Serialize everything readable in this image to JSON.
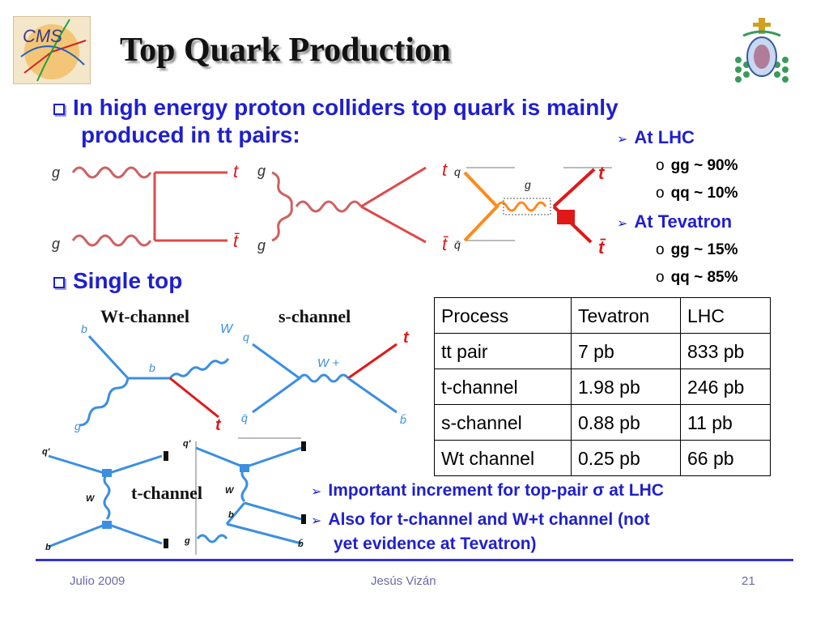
{
  "slide": {
    "title": "Top Quark Production",
    "bullet1": "In high energy proton colliders top quark is mainly produced in tt pairs:",
    "bullet1_line1": "In high energy proton colliders top quark is mainly",
    "bullet1_line2": "produced in tt pairs:",
    "bullet2": "Single top",
    "lhc": {
      "label": "At LHC",
      "items": [
        {
          "marker": "o",
          "text": "gg ~ 90%"
        },
        {
          "marker": "o",
          "text": "qq ~ 10%"
        }
      ]
    },
    "tevatron": {
      "label": "At Tevatron",
      "items": [
        {
          "marker": "o",
          "text": "gg ~ 15%"
        },
        {
          "marker": "o",
          "text": "qq ~ 85%"
        }
      ]
    },
    "diagram_labels": {
      "g": "g",
      "t": "t",
      "tbar": "t̄",
      "q": "q",
      "qbar": "q̄",
      "b": "b",
      "bbar": "b̄",
      "W": "W",
      "Wplus": "W +",
      "qprime": "q'"
    },
    "channels": {
      "wt": "Wt-channel",
      "s": "s-channel",
      "t": "t-channel"
    },
    "table": {
      "header": [
        "Process",
        "Tevatron",
        "LHC"
      ],
      "rows": [
        [
          "tt pair",
          "7 pb",
          "833 pb"
        ],
        [
          "t-channel",
          "1.98 pb",
          "246 pb"
        ],
        [
          "s-channel",
          "0.88 pb",
          "11 pb"
        ],
        [
          "Wt channel",
          "0.25 pb",
          "66 pb"
        ]
      ]
    },
    "notes": [
      "Important increment for top-pair σ at LHC",
      "Also for t-channel and W+t channel (not",
      "yet evidence at Tevatron)"
    ]
  },
  "logos": {
    "left_text": "CMS"
  },
  "footer": {
    "date": "Julio 2009",
    "author": "Jesús Vizán",
    "page": "21"
  },
  "colors": {
    "accent_blue": "#1f1fcf",
    "gluon_red": "#c23a3a",
    "feynman_blue": "#3b8fe0",
    "top_red": "#e01818",
    "footer_line": "#3333cc"
  }
}
